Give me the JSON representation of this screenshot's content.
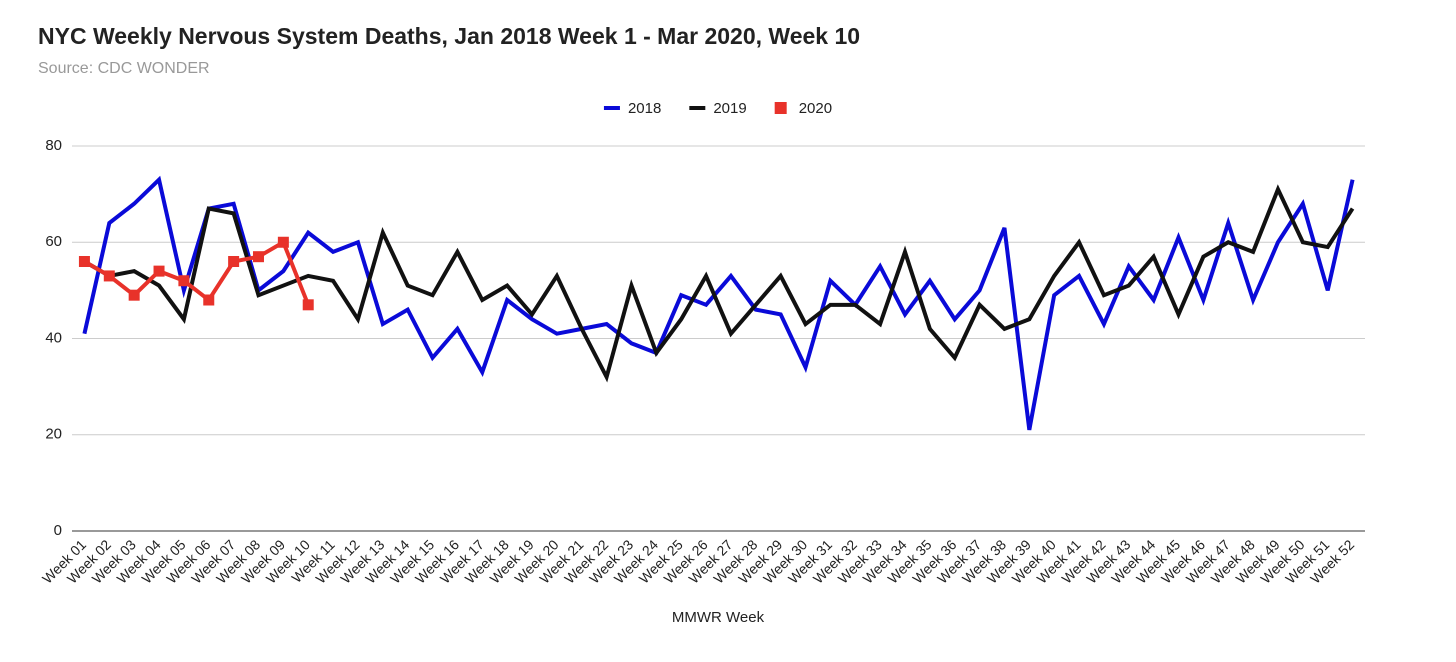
{
  "chart_data": {
    "type": "line",
    "title": "NYC Weekly Nervous System Deaths, Jan 2018 Week 1 - Mar 2020, Week 10",
    "subtitle": "Source: CDC WONDER",
    "x_label": "MMWR Week",
    "categories": [
      "Week 01",
      "Week 02",
      "Week 03",
      "Week 04",
      "Week 05",
      "Week 06",
      "Week 07",
      "Week 08",
      "Week 09",
      "Week 10",
      "Week 11",
      "Week 12",
      "Week 13",
      "Week 14",
      "Week 15",
      "Week 16",
      "Week 17",
      "Week 18",
      "Week 19",
      "Week 20",
      "Week 21",
      "Week 22",
      "Week 23",
      "Week 24",
      "Week 25",
      "Week 26",
      "Week 27",
      "Week 28",
      "Week 29",
      "Week 30",
      "Week 31",
      "Week 32",
      "Week 33",
      "Week 34",
      "Week 35",
      "Week 36",
      "Week 37",
      "Week 38",
      "Week 39",
      "Week 40",
      "Week 41",
      "Week 42",
      "Week 43",
      "Week 44",
      "Week 45",
      "Week 46",
      "Week 47",
      "Week 48",
      "Week 49",
      "Week 50",
      "Week 51",
      "Week 52"
    ],
    "series": [
      {
        "name": "2018",
        "color": "#0a0ad8",
        "values": [
          41,
          64,
          68,
          73,
          50,
          67,
          68,
          50,
          54,
          62,
          58,
          60,
          43,
          46,
          36,
          42,
          33,
          48,
          44,
          41,
          42,
          43,
          39,
          37,
          49,
          47,
          53,
          46,
          45,
          34,
          52,
          47,
          55,
          45,
          52,
          44,
          50,
          63,
          21,
          49,
          53,
          43,
          55,
          48,
          61,
          48,
          64,
          48,
          60,
          68,
          50,
          73
        ]
      },
      {
        "name": "2019",
        "color": "#111111",
        "values": [
          56,
          53,
          54,
          51,
          44,
          67,
          66,
          49,
          51,
          53,
          52,
          44,
          62,
          51,
          49,
          58,
          48,
          51,
          45,
          53,
          42,
          32,
          51,
          37,
          44,
          53,
          41,
          47,
          53,
          43,
          47,
          47,
          43,
          58,
          42,
          36,
          47,
          42,
          44,
          53,
          60,
          49,
          51,
          57,
          45,
          57,
          60,
          58,
          71,
          60,
          59,
          67
        ]
      },
      {
        "name": "2020",
        "color": "#e8322a",
        "marker": "square",
        "values": [
          56,
          53,
          49,
          54,
          52,
          48,
          56,
          57,
          60,
          47,
          null,
          null,
          null,
          null,
          null,
          null,
          null,
          null,
          null,
          null,
          null,
          null,
          null,
          null,
          null,
          null,
          null,
          null,
          null,
          null,
          null,
          null,
          null,
          null,
          null,
          null,
          null,
          null,
          null,
          null,
          null,
          null,
          null,
          null,
          null,
          null,
          null,
          null,
          null,
          null,
          null,
          null
        ]
      }
    ],
    "ylim": [
      0,
      80
    ],
    "yticks": [
      0,
      20,
      40,
      60,
      80
    ],
    "grid": true,
    "legend": "top"
  }
}
